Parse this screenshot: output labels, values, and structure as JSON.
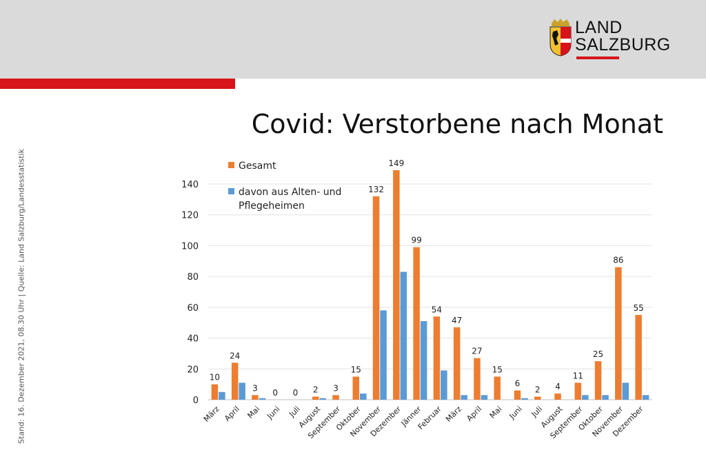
{
  "header": {
    "logo_line1": "LAND",
    "logo_line2": "SALZBURG"
  },
  "slide": {
    "title": "Covid: Verstorbene nach Monat",
    "source_note": "Stand: 16. Dezember  2021, 08.30 Uhr  |  Quelle: Land Salzburg/Landesstatistik"
  },
  "colors": {
    "topbar": "#dadada",
    "accent_red": "#d7141a",
    "series_total": "#ed7d31",
    "series_care": "#5b9bd5"
  },
  "chart_data": {
    "type": "bar",
    "title": "Covid: Verstorbene nach Monat",
    "xlabel": "",
    "ylabel": "",
    "ylim": [
      0,
      150
    ],
    "yticks": [
      0,
      20,
      40,
      60,
      80,
      100,
      120,
      140
    ],
    "grid": true,
    "legend_position": "top-left",
    "categories": [
      "März",
      "April",
      "Mai",
      "Juni",
      "Juli",
      "August",
      "September",
      "Oktober",
      "November",
      "Dezember",
      "Jänner",
      "Februar",
      "März",
      "April",
      "Mai",
      "Juni",
      "Juli",
      "August",
      "September",
      "Oktober",
      "November",
      "Dezember"
    ],
    "series": [
      {
        "name": "Gesamt",
        "color": "#ed7d31",
        "values": [
          10,
          24,
          3,
          0,
          0,
          2,
          3,
          15,
          132,
          149,
          99,
          54,
          47,
          27,
          15,
          6,
          2,
          4,
          11,
          25,
          86,
          55
        ],
        "data_labels": true
      },
      {
        "name": "davon aus Alten- und Pflegeheimen",
        "name_lines": [
          "davon aus Alten- und",
          "Pflegeheimen"
        ],
        "color": "#5b9bd5",
        "values": [
          5,
          11,
          1,
          0,
          0,
          1,
          0,
          4,
          58,
          83,
          51,
          19,
          3,
          3,
          0,
          1,
          0,
          0,
          3,
          3,
          11,
          3
        ],
        "data_labels": false
      }
    ]
  }
}
